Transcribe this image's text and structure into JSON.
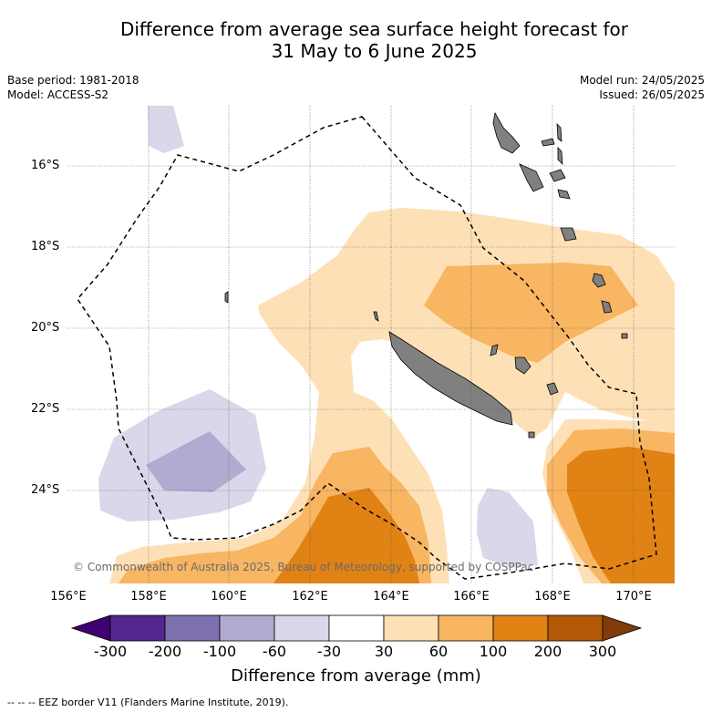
{
  "title": {
    "line1": "Difference from average sea surface height forecast for",
    "line2": "31 May to 6 June 2025"
  },
  "meta_left": {
    "base_period": "Base period: 1981-2018",
    "model": "Model: ACCESS-S2"
  },
  "meta_right": {
    "model_run": "Model run: 24/05/2025",
    "issued": "Issued: 26/05/2025"
  },
  "map": {
    "lat_labels": [
      "16°S",
      "18°S",
      "20°S",
      "22°S",
      "24°S"
    ],
    "lon_labels": [
      "156°E",
      "158°E",
      "160°E",
      "162°E",
      "164°E",
      "166°E",
      "168°E",
      "170°E"
    ],
    "copyright": "© Commonwealth of Australia 2025, Bureau of Meteorology, supported by COSPPac",
    "land_color": "#808080",
    "eez_line_style": "dashed"
  },
  "colorbar": {
    "ticks": [
      "-300",
      "-200",
      "-100",
      "-60",
      "-30",
      "30",
      "60",
      "100",
      "200",
      "300"
    ],
    "colors": [
      "#3f0071",
      "#54278f",
      "#7e70ae",
      "#b1aad1",
      "#d9d8ea",
      "#ffffff",
      "#fee0b6",
      "#f8b562",
      "#e08214",
      "#b35806",
      "#7f3b08"
    ],
    "label": "Difference from average (mm)"
  },
  "footnote": "--  --  -- EEZ border V11 (Flanders Marine Institute, 2019)."
}
